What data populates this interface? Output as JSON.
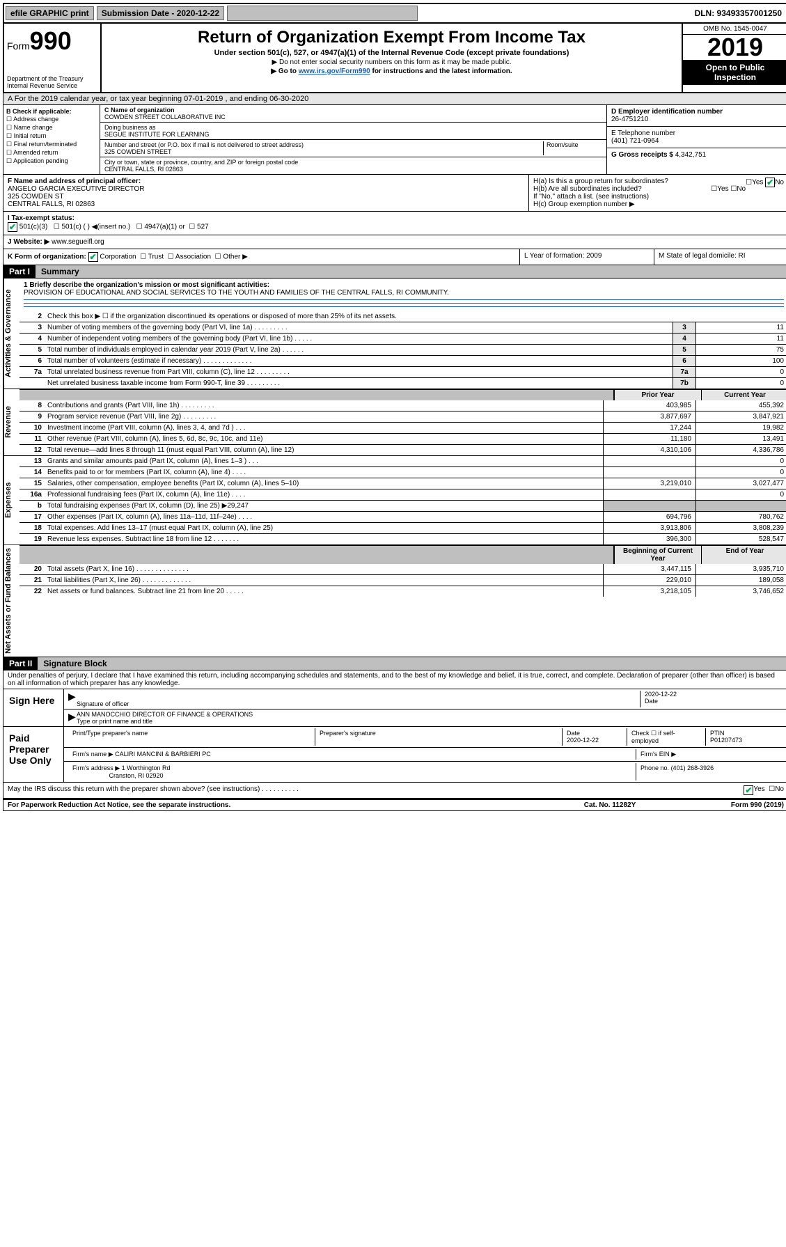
{
  "topbar": {
    "efile": "efile GRAPHIC print",
    "submission_label": "Submission Date - 2020-12-22",
    "dln": "DLN: 93493357001250"
  },
  "header": {
    "form_label": "Form",
    "form_number": "990",
    "dept": "Department of the Treasury",
    "irs": "Internal Revenue Service",
    "title": "Return of Organization Exempt From Income Tax",
    "subtitle": "Under section 501(c), 527, or 4947(a)(1) of the Internal Revenue Code (except private foundations)",
    "arrow1": "▶ Do not enter social security numbers on this form as it may be made public.",
    "arrow2_prefix": "▶ Go to ",
    "arrow2_link": "www.irs.gov/Form990",
    "arrow2_suffix": " for instructions and the latest information.",
    "omb": "OMB No. 1545-0047",
    "year": "2019",
    "inspection": "Open to Public Inspection"
  },
  "period": "A For the 2019 calendar year, or tax year beginning 07-01-2019    , and ending 06-30-2020",
  "boxB": {
    "label": "B Check if applicable:",
    "opts": [
      "Address change",
      "Name change",
      "Initial return",
      "Final return/terminated",
      "Amended return",
      "Application pending"
    ]
  },
  "boxC": {
    "name_label": "C Name of organization",
    "name": "COWDEN STREET COLLABORATIVE INC",
    "dba_label": "Doing business as",
    "dba": "SEGUE INSTITUTE FOR LEARNING",
    "addr_label": "Number and street (or P.O. box if mail is not delivered to street address)",
    "addr": "325 COWDEN STREET",
    "room_label": "Room/suite",
    "city_label": "City or town, state or province, country, and ZIP or foreign postal code",
    "city": "CENTRAL FALLS, RI  02863"
  },
  "boxD": {
    "label": "D Employer identification number",
    "value": "26-4751210"
  },
  "boxE": {
    "label": "E Telephone number",
    "value": "(401) 721-0964"
  },
  "boxG": {
    "label": "G Gross receipts $",
    "value": "4,342,751"
  },
  "boxF": {
    "label": "F Name and address of principal officer:",
    "line1": "ANGELO GARCIA EXECUTIVE DIRECTOR",
    "line2": "325 COWDEN ST",
    "line3": "CENTRAL FALLS, RI  02863"
  },
  "boxH": {
    "a": "H(a)  Is this a group return for subordinates?",
    "a_yes": "Yes",
    "a_no": "No",
    "b": "H(b)  Are all subordinates included?",
    "b_yes": "Yes",
    "b_no": "No",
    "attach": "If \"No,\" attach a list. (see instructions)",
    "c": "H(c)  Group exemption number ▶"
  },
  "taxI": {
    "label": "I  Tax-exempt status:",
    "c3": "501(c)(3)",
    "c": "501(c) (  ) ◀(insert no.)",
    "a1": "4947(a)(1) or",
    "527": "527"
  },
  "website": {
    "label": "J  Website: ▶",
    "value": "www.segueifl.org"
  },
  "formK": {
    "label": "K Form of organization:",
    "corp": "Corporation",
    "trust": "Trust",
    "assoc": "Association",
    "other": "Other ▶",
    "L": "L Year of formation: 2009",
    "M": "M State of legal domicile: RI"
  },
  "partI": {
    "header": "Part I",
    "title": "Summary"
  },
  "mission": {
    "q": "1  Briefly describe the organization's mission or most significant activities:",
    "text": "PROVISION OF EDUCATIONAL AND SOCIAL SERVICES TO THE YOUTH AND FAMILIES OF THE CENTRAL FALLS, RI COMMUNITY."
  },
  "gov_lines": [
    {
      "n": "2",
      "d": "Check this box ▶ ☐  if the organization discontinued its operations or disposed of more than 25% of its net assets."
    },
    {
      "n": "3",
      "d": "Number of voting members of the governing body (Part VI, line 1a)   .    .    .    .    .    .    .    .    .",
      "box": "3",
      "v": "11"
    },
    {
      "n": "4",
      "d": "Number of independent voting members of the governing body (Part VI, line 1b)    .    .    .    .    .",
      "box": "4",
      "v": "11"
    },
    {
      "n": "5",
      "d": "Total number of individuals employed in calendar year 2019 (Part V, line 2a)    .    .    .    .    .    .",
      "box": "5",
      "v": "75"
    },
    {
      "n": "6",
      "d": "Total number of volunteers (estimate if necessary)   .    .    .    .    .    .    .    .    .    .    .    .    .",
      "box": "6",
      "v": "100"
    },
    {
      "n": "7a",
      "d": "Total unrelated business revenue from Part VIII, column (C), line 12   .    .    .    .    .    .    .    .    .",
      "box": "7a",
      "v": "0"
    },
    {
      "n": "",
      "d": "Net unrelated business taxable income from Form 990-T, line 39   .    .    .    .    .    .    .    .    .",
      "box": "7b",
      "v": "0"
    }
  ],
  "rev_header": {
    "prior": "Prior Year",
    "current": "Current Year"
  },
  "rev_lines": [
    {
      "n": "8",
      "d": "Contributions and grants (Part VIII, line 1h)   .    .    .    .    .    .    .    .    .",
      "p": "403,985",
      "c": "455,392"
    },
    {
      "n": "9",
      "d": "Program service revenue (Part VIII, line 2g)   .    .    .    .    .    .    .    .    .",
      "p": "3,877,697",
      "c": "3,847,921"
    },
    {
      "n": "10",
      "d": "Investment income (Part VIII, column (A), lines 3, 4, and 7d )    .    .    .",
      "p": "17,244",
      "c": "19,982"
    },
    {
      "n": "11",
      "d": "Other revenue (Part VIII, column (A), lines 5, 6d, 8c, 9c, 10c, and 11e)",
      "p": "11,180",
      "c": "13,491"
    },
    {
      "n": "12",
      "d": "Total revenue—add lines 8 through 11 (must equal Part VIII, column (A), line 12)",
      "p": "4,310,106",
      "c": "4,336,786"
    }
  ],
  "exp_lines": [
    {
      "n": "13",
      "d": "Grants and similar amounts paid (Part IX, column (A), lines 1–3 )   .    .    .",
      "p": "",
      "c": "0"
    },
    {
      "n": "14",
      "d": "Benefits paid to or for members (Part IX, column (A), line 4)   .    .    .    .",
      "p": "",
      "c": "0"
    },
    {
      "n": "15",
      "d": "Salaries, other compensation, employee benefits (Part IX, column (A), lines 5–10)",
      "p": "3,219,010",
      "c": "3,027,477"
    },
    {
      "n": "16a",
      "d": "Professional fundraising fees (Part IX, column (A), line 11e)    .    .    .    .",
      "p": "",
      "c": "0"
    },
    {
      "n": "b",
      "d": "Total fundraising expenses (Part IX, column (D), line 25) ▶29,247",
      "p": null,
      "c": null,
      "gray": true
    },
    {
      "n": "17",
      "d": "Other expenses (Part IX, column (A), lines 11a–11d, 11f–24e)   .    .    .    .",
      "p": "694,796",
      "c": "780,762"
    },
    {
      "n": "18",
      "d": "Total expenses. Add lines 13–17 (must equal Part IX, column (A), line 25)",
      "p": "3,913,806",
      "c": "3,808,239"
    },
    {
      "n": "19",
      "d": "Revenue less expenses. Subtract line 18 from line 12   .    .    .    .    .    .    .",
      "p": "396,300",
      "c": "528,547"
    }
  ],
  "na_header": {
    "begin": "Beginning of Current Year",
    "end": "End of Year"
  },
  "na_lines": [
    {
      "n": "20",
      "d": "Total assets (Part X, line 16)   .    .    .    .    .    .    .    .    .    .    .    .    .    .",
      "p": "3,447,115",
      "c": "3,935,710"
    },
    {
      "n": "21",
      "d": "Total liabilities (Part X, line 26)   .    .    .    .    .    .    .    .    .    .    .    .    .",
      "p": "229,010",
      "c": "189,058"
    },
    {
      "n": "22",
      "d": "Net assets or fund balances. Subtract line 21 from line 20   .    .    .    .    .",
      "p": "3,218,105",
      "c": "3,746,652"
    }
  ],
  "partII": {
    "header": "Part II",
    "title": "Signature Block"
  },
  "sig_decl": "Under penalties of perjury, I declare that I have examined this return, including accompanying schedules and statements, and to the best of my knowledge and belief, it is true, correct, and complete. Declaration of preparer (other than officer) is based on all information of which preparer has any knowledge.",
  "sign_here": "Sign Here",
  "sig_officer_label": "Signature of officer",
  "sig_date": "2020-12-22",
  "sig_date_label": "Date",
  "sig_name": "ANN MANOCCHIO  DIRECTOR OF FINANCE & OPERATIONS",
  "sig_name_label": "Type or print name and title",
  "paid_prep": "Paid Preparer Use Only",
  "prep": {
    "print_label": "Print/Type preparer's name",
    "sig_label": "Preparer's signature",
    "date_label": "Date",
    "date": "2020-12-22",
    "check_label": "Check ☐ if self-employed",
    "ptin_label": "PTIN",
    "ptin": "P01207473",
    "firm_name_label": "Firm's name    ▶",
    "firm_name": "CALIRI MANCINI & BARBIERI PC",
    "firm_ein_label": "Firm's EIN ▶",
    "firm_addr_label": "Firm's address ▶",
    "firm_addr1": "1 Worthington Rd",
    "firm_addr2": "Cranston, RI  02920",
    "phone_label": "Phone no.",
    "phone": "(401) 268-3926"
  },
  "discuss": "May the IRS discuss this return with the preparer shown above? (see instructions)    .    .    .    .    .    .    .    .    .    .",
  "discuss_yes": "Yes",
  "discuss_no": "No",
  "footer": {
    "paperwork": "For Paperwork Reduction Act Notice, see the separate instructions.",
    "cat": "Cat. No. 11282Y",
    "form": "Form 990 (2019)"
  },
  "side_labels": {
    "gov": "Activities & Governance",
    "rev": "Revenue",
    "exp": "Expenses",
    "na": "Net Assets or Fund Balances"
  }
}
